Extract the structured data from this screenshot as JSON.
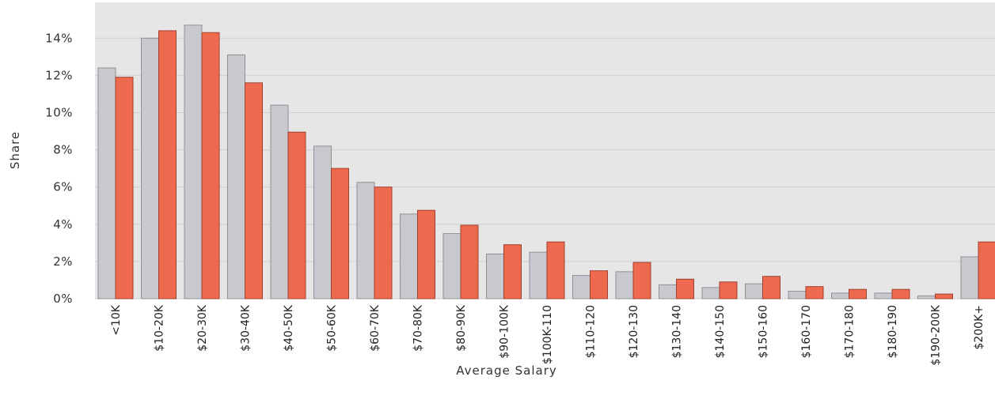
{
  "chart_data": {
    "type": "bar",
    "xlabel": "Average Salary",
    "ylabel": "Share",
    "ylim": [
      0,
      16
    ],
    "yticks": [
      0,
      2,
      4,
      6,
      8,
      10,
      12,
      14
    ],
    "ytick_labels": [
      "0%",
      "2%",
      "4%",
      "6%",
      "8%",
      "10%",
      "12%",
      "14%"
    ],
    "grid": true,
    "legend": "none",
    "categories": [
      "<10K",
      "$10-20K",
      "$20-30K",
      "$30-40K",
      "$40-50K",
      "$50-60K",
      "$60-70K",
      "$70-80K",
      "$80-90K",
      "$90-100K",
      "$100K-110",
      "$110-120",
      "$120-130",
      "$130-140",
      "$140-150",
      "$150-160",
      "$160-170",
      "$170-180",
      "$180-190",
      "$190-200K",
      "$200K+"
    ],
    "series": [
      {
        "values": [
          12.4,
          14.0,
          14.7,
          13.1,
          10.4,
          8.2,
          6.25,
          4.55,
          3.5,
          2.4,
          2.5,
          1.25,
          1.45,
          0.75,
          0.6,
          0.8,
          0.4,
          0.3,
          0.3,
          0.15,
          2.25
        ]
      },
      {
        "values": [
          11.9,
          14.4,
          14.3,
          11.6,
          8.95,
          7.0,
          6.0,
          4.75,
          3.95,
          2.9,
          3.05,
          1.5,
          1.95,
          1.05,
          0.9,
          1.2,
          0.65,
          0.5,
          0.5,
          0.25,
          3.05
        ]
      }
    ],
    "colors": {
      "series_a": "#c8c9cf",
      "series_b": "#ee6a4f",
      "plot_background": "#e6e6e6",
      "grid": "#cfcfcf"
    }
  }
}
